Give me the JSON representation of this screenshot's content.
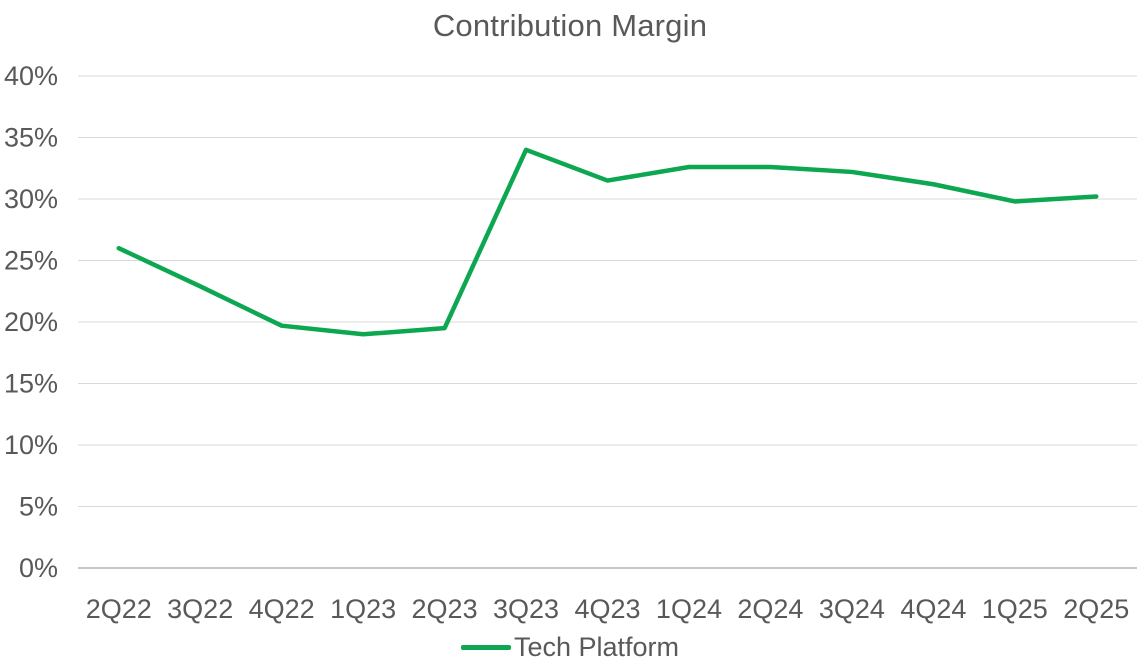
{
  "chart_data": {
    "type": "line",
    "title": "Contribution Margin",
    "categories": [
      "2Q22",
      "3Q22",
      "4Q22",
      "1Q23",
      "2Q23",
      "3Q23",
      "4Q23",
      "1Q24",
      "2Q24",
      "3Q24",
      "4Q24",
      "1Q25",
      "2Q25"
    ],
    "series": [
      {
        "name": "Tech Platform",
        "color": "#0CA750",
        "values": [
          26.0,
          22.9,
          19.7,
          19.0,
          19.5,
          34.0,
          31.5,
          32.6,
          32.6,
          32.2,
          31.2,
          29.8,
          30.2
        ]
      }
    ],
    "y_axis": {
      "min": 0,
      "max": 40,
      "step": 5,
      "unit": "%",
      "tick_labels": [
        "0%",
        "5%",
        "10%",
        "15%",
        "20%",
        "25%",
        "30%",
        "35%",
        "40%"
      ]
    },
    "x_axis": {
      "label": ""
    },
    "grid": true,
    "legend_position": "bottom",
    "colors": {
      "text": "#595959",
      "gridline": "#D9D9D9",
      "axis_line": "#C8C8C8",
      "background": "#FFFFFF"
    }
  }
}
